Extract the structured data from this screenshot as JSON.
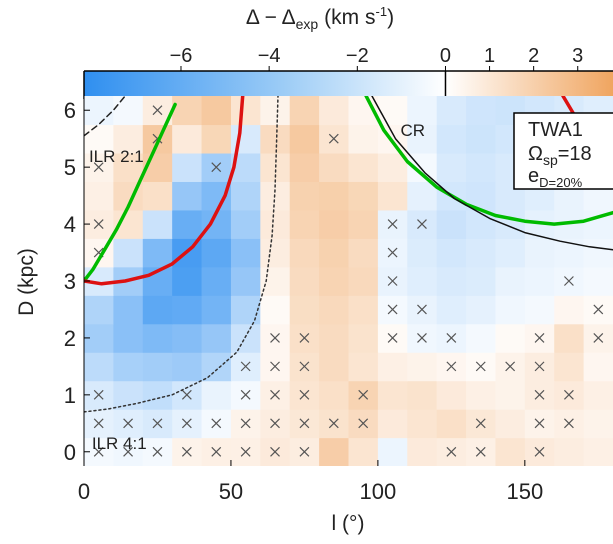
{
  "chart_data": {
    "type": "heatmap",
    "title": "",
    "colorbar": {
      "label_main": "Δ  − Δ",
      "label_sub": "exp",
      "label_unit": "(km s",
      "label_sup": "-1",
      "label_close": ")",
      "range": [
        -8.2,
        3.8
      ],
      "ticks": [
        -6,
        -4,
        -2,
        0,
        1,
        2,
        3
      ],
      "tick_labels": [
        "−6",
        "−4",
        "−2",
        "0",
        "1",
        "2",
        "3"
      ],
      "negative_color": "#2f8ff0",
      "positive_color": "#f0a560",
      "neutral_color": "#ffffff"
    },
    "xlabel": "l (°)",
    "ylabel": "D (kpc)",
    "xlim": [
      0,
      180
    ],
    "ylim": [
      -0.25,
      6.25
    ],
    "x_ticks": [
      0,
      50,
      100,
      150
    ],
    "x_tick_labels": [
      "0",
      "50",
      "100",
      "150"
    ],
    "y_ticks": [
      0,
      1,
      2,
      3,
      4,
      5,
      6
    ],
    "y_tick_labels": [
      "0",
      "1",
      "2",
      "3",
      "4",
      "5",
      "6"
    ],
    "cell_x_centers": [
      5,
      15,
      25,
      35,
      45,
      55,
      65,
      75,
      85,
      95,
      105,
      115,
      125,
      135,
      145,
      155,
      165,
      175
    ],
    "cell_y_centers": [
      0,
      0.5,
      1,
      1.5,
      2,
      2.5,
      3,
      3.5,
      4,
      4.5,
      5,
      5.5,
      6
    ],
    "values_by_row_from_D0": [
      [
        -0.2,
        -0.3,
        -0.2,
        0.3,
        0.4,
        0.4,
        0.6,
        0.5,
        1.8,
        0.8,
        -0.4,
        0.6,
        0.5,
        0.4,
        0.8,
        0.6,
        0.5,
        0.4
      ],
      [
        -0.6,
        -0.8,
        -1.0,
        -0.6,
        -0.2,
        0.3,
        0.5,
        0.7,
        0.9,
        1.2,
        0.6,
        0.8,
        1.0,
        0.7,
        0.5,
        0.3,
        0.4,
        0.3
      ],
      [
        -1.0,
        -1.5,
        -1.8,
        -1.2,
        -0.5,
        -0.2,
        0.4,
        0.8,
        1.0,
        1.5,
        0.8,
        0.9,
        0.6,
        0.4,
        0.3,
        0.5,
        0.6,
        0.4
      ],
      [
        -2.0,
        -2.8,
        -3.0,
        -3.2,
        -2.4,
        -0.8,
        0.2,
        0.9,
        1.2,
        0.8,
        0.4,
        0.3,
        0.2,
        0.1,
        0.3,
        0.5,
        0.8,
        0.2
      ],
      [
        -3.0,
        -4.0,
        -4.5,
        -4.2,
        -3.5,
        -1.5,
        0.2,
        1.0,
        1.2,
        0.9,
        0.1,
        -0.3,
        -0.4,
        -0.2,
        0.1,
        0.2,
        1.0,
        0.3
      ],
      [
        -2.5,
        -4.0,
        -6.0,
        -5.8,
        -5.0,
        -2.5,
        0.1,
        1.1,
        1.3,
        1.0,
        -0.2,
        -0.5,
        -0.8,
        -0.6,
        -0.3,
        -0.2,
        0.2,
        0.1
      ],
      [
        -1.0,
        -3.0,
        -5.5,
        -6.8,
        -5.5,
        -3.5,
        0.3,
        1.2,
        1.5,
        1.3,
        -0.5,
        -0.8,
        -1.0,
        -0.9,
        -0.5,
        -0.4,
        -0.3,
        -0.2
      ],
      [
        0.2,
        -1.5,
        -4.5,
        -7.0,
        -6.0,
        -4.0,
        0.5,
        1.3,
        1.6,
        1.2,
        -0.4,
        -0.9,
        -1.2,
        -1.0,
        -0.8,
        -0.5,
        -0.4,
        -0.3
      ],
      [
        0.5,
        0.8,
        -1.5,
        -5.5,
        -5.0,
        -3.0,
        0.6,
        1.5,
        1.8,
        1.5,
        -0.5,
        -1.0,
        -1.5,
        -1.2,
        -1.0,
        -0.6,
        -0.5,
        -0.4
      ],
      [
        0.4,
        1.2,
        1.0,
        -3.5,
        -4.5,
        -2.5,
        0.5,
        1.6,
        1.7,
        1.4,
        0.8,
        -0.6,
        -1.2,
        -1.3,
        -1.0,
        -0.8,
        -0.5,
        -0.3
      ],
      [
        0.3,
        1.0,
        1.8,
        -1.5,
        -3.0,
        -2.0,
        0.8,
        1.8,
        1.2,
        0.8,
        0.5,
        -0.2,
        -1.0,
        -1.2,
        -1.0,
        -0.8,
        -0.6,
        -0.4
      ],
      [
        0.1,
        0.5,
        2.0,
        0.6,
        1.4,
        -1.0,
        1.2,
        2.0,
        0.8,
        0.3,
        0.2,
        -0.5,
        -1.2,
        -1.4,
        -1.2,
        -1.0,
        -0.8,
        -0.6
      ],
      [
        -0.4,
        -0.2,
        0.5,
        1.5,
        2.0,
        0.8,
        0.3,
        1.5,
        0.6,
        0.2,
        0.1,
        -0.4,
        -1.0,
        -1.3,
        -1.4,
        -1.2,
        -1.0,
        -0.8
      ]
    ],
    "masked_cells": [
      [
        5,
        0
      ],
      [
        15,
        0
      ],
      [
        25,
        0
      ],
      [
        35,
        0
      ],
      [
        45,
        0
      ],
      [
        55,
        0
      ],
      [
        65,
        0
      ],
      [
        75,
        0
      ],
      [
        125,
        0
      ],
      [
        135,
        0
      ],
      [
        155,
        0
      ],
      [
        5,
        0.5
      ],
      [
        15,
        0.5
      ],
      [
        25,
        0.5
      ],
      [
        35,
        0.5
      ],
      [
        45,
        0.5
      ],
      [
        55,
        0.5
      ],
      [
        65,
        0.5
      ],
      [
        75,
        0.5
      ],
      [
        85,
        0.5
      ],
      [
        95,
        0.5
      ],
      [
        135,
        0.5
      ],
      [
        155,
        0.5
      ],
      [
        165,
        0.5
      ],
      [
        5,
        1
      ],
      [
        35,
        1
      ],
      [
        55,
        1
      ],
      [
        65,
        1
      ],
      [
        75,
        1
      ],
      [
        95,
        1
      ],
      [
        155,
        1
      ],
      [
        165,
        1
      ],
      [
        55,
        1.5
      ],
      [
        65,
        1.5
      ],
      [
        75,
        1.5
      ],
      [
        125,
        1.5
      ],
      [
        135,
        1.5
      ],
      [
        145,
        1.5
      ],
      [
        155,
        1.5
      ],
      [
        65,
        2
      ],
      [
        75,
        2
      ],
      [
        105,
        2
      ],
      [
        115,
        2
      ],
      [
        125,
        2
      ],
      [
        155,
        2
      ],
      [
        175,
        2
      ],
      [
        105,
        2.5
      ],
      [
        115,
        2.5
      ],
      [
        175,
        2.5
      ],
      [
        105,
        3
      ],
      [
        165,
        3
      ],
      [
        5,
        3.5
      ],
      [
        105,
        3.5
      ],
      [
        5,
        4
      ],
      [
        105,
        4
      ],
      [
        115,
        4
      ],
      [
        5,
        5
      ],
      [
        45,
        5
      ],
      [
        25,
        5.5
      ],
      [
        85,
        5.5
      ],
      [
        25,
        6
      ]
    ],
    "overlay_curves": [
      {
        "color": "#00bb00",
        "points": [
          [
            0,
            3.0
          ],
          [
            3,
            3.2
          ],
          [
            7,
            3.55
          ],
          [
            11,
            3.9
          ],
          [
            15,
            4.3
          ],
          [
            19,
            4.75
          ],
          [
            23,
            5.2
          ],
          [
            27,
            5.65
          ],
          [
            31,
            6.1
          ]
        ]
      },
      {
        "color": "#dd1111",
        "points": [
          [
            0,
            3.0
          ],
          [
            6,
            2.95
          ],
          [
            14,
            3.0
          ],
          [
            22,
            3.1
          ],
          [
            30,
            3.3
          ],
          [
            37,
            3.6
          ],
          [
            43,
            4.0
          ],
          [
            48,
            4.5
          ],
          [
            51,
            5.0
          ],
          [
            53,
            5.6
          ],
          [
            54,
            6.25
          ]
        ]
      },
      {
        "color": "#00bb00",
        "points": [
          [
            96,
            6.25
          ],
          [
            102,
            5.65
          ],
          [
            110,
            5.1
          ],
          [
            120,
            4.65
          ],
          [
            130,
            4.35
          ],
          [
            140,
            4.15
          ],
          [
            150,
            4.05
          ],
          [
            160,
            4.0
          ],
          [
            170,
            4.05
          ],
          [
            180,
            4.2
          ]
        ]
      },
      {
        "color": "#111111",
        "points": [
          [
            98,
            6.25
          ],
          [
            106,
            5.5
          ],
          [
            116,
            4.9
          ],
          [
            126,
            4.45
          ],
          [
            138,
            4.1
          ],
          [
            150,
            3.85
          ],
          [
            162,
            3.7
          ],
          [
            172,
            3.6
          ],
          [
            180,
            3.55
          ]
        ]
      },
      {
        "color": "#dd1111",
        "points": [
          [
            163,
            6.25
          ],
          [
            167,
            5.9
          ],
          [
            170,
            5.6
          ]
        ]
      },
      {
        "color": "#333333",
        "dash": "2,3",
        "points": [
          [
            0,
            0.7
          ],
          [
            8,
            0.75
          ],
          [
            18,
            0.85
          ],
          [
            30,
            1.0
          ],
          [
            42,
            1.3
          ],
          [
            52,
            1.75
          ],
          [
            58,
            2.3
          ],
          [
            62,
            3.0
          ],
          [
            64,
            3.8
          ],
          [
            65,
            4.6
          ],
          [
            65.5,
            5.4
          ],
          [
            66,
            6.25
          ]
        ]
      },
      {
        "color": "#222222",
        "dash": "6,4",
        "points": [
          [
            0,
            5.55
          ],
          [
            5,
            5.75
          ],
          [
            10,
            6.0
          ],
          [
            14,
            6.25
          ]
        ]
      }
    ],
    "annotations": [
      {
        "text": "ILR 2:1",
        "x": 1,
        "y": 5.2
      },
      {
        "text": "CR",
        "x": 107,
        "y": 5.65
      },
      {
        "text": "ILR 4:1",
        "x": 2,
        "y": 0.15
      }
    ],
    "legend": {
      "placement": "top-right",
      "line1": "TWA1",
      "line2_main": "Ω",
      "line2_sub": "sp",
      "line2_rest": "=18",
      "line3_main": "e",
      "line3_sub": "D=20%"
    }
  }
}
